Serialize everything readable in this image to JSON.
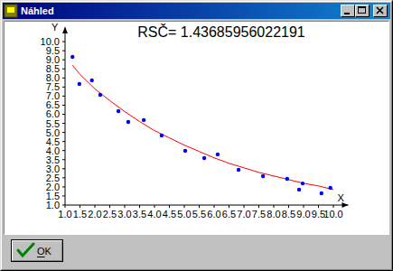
{
  "window": {
    "title": "Náhled",
    "button": "OK"
  },
  "chart_data": {
    "type": "scatter",
    "title": "RSČ= 1.43685956022191",
    "x_label": "X",
    "y_label": "Y",
    "xlim": [
      1,
      10.5
    ],
    "ylim": [
      1,
      10.8
    ],
    "xticks": [
      {
        "value": 1,
        "label": "1.0"
      },
      {
        "value": 1.5,
        "label": "1.5"
      },
      {
        "value": 2,
        "label": "2.0"
      },
      {
        "value": 2.5,
        "label": "2.5"
      },
      {
        "value": 3,
        "label": "3.0"
      },
      {
        "value": 3.5,
        "label": "3.5"
      },
      {
        "value": 4,
        "label": "4.0"
      },
      {
        "value": 4.5,
        "label": "4.5"
      },
      {
        "value": 5,
        "label": "5.0"
      },
      {
        "value": 5.5,
        "label": "5.5"
      },
      {
        "value": 6,
        "label": "6.0"
      },
      {
        "value": 6.5,
        "label": "6.5"
      },
      {
        "value": 7,
        "label": "7.0"
      },
      {
        "value": 7.5,
        "label": "7.5"
      },
      {
        "value": 8,
        "label": "8.0"
      },
      {
        "value": 8.5,
        "label": "8.5"
      },
      {
        "value": 9,
        "label": "9.0"
      },
      {
        "value": 9.5,
        "label": "9.5"
      },
      {
        "value": 10,
        "label": "10.0"
      }
    ],
    "yticks": [
      {
        "value": 1,
        "label": "1.0"
      },
      {
        "value": 1.5,
        "label": "1.5"
      },
      {
        "value": 2,
        "label": "2.0"
      },
      {
        "value": 2.5,
        "label": "2.5"
      },
      {
        "value": 3,
        "label": "3.0"
      },
      {
        "value": 3.5,
        "label": "3.5"
      },
      {
        "value": 4,
        "label": "4.0"
      },
      {
        "value": 4.5,
        "label": "4.5"
      },
      {
        "value": 5,
        "label": "5.0"
      },
      {
        "value": 5.5,
        "label": "5.5"
      },
      {
        "value": 6,
        "label": "6.0"
      },
      {
        "value": 6.5,
        "label": "6.5"
      },
      {
        "value": 7,
        "label": "7.0"
      },
      {
        "value": 7.5,
        "label": "7.5"
      },
      {
        "value": 8,
        "label": "8.0"
      },
      {
        "value": 8.5,
        "label": "8.5"
      },
      {
        "value": 9,
        "label": "9.0"
      },
      {
        "value": 9.5,
        "label": "9.5"
      },
      {
        "value": 10,
        "label": "10.0"
      }
    ],
    "grid": false,
    "series": [
      {
        "type": "scatter",
        "color": "#0000ff",
        "marker": "circle",
        "x": [
          1.25,
          1.48,
          1.9,
          2.18,
          2.79,
          3.12,
          3.64,
          4.24,
          5.03,
          5.67,
          6.12,
          6.82,
          7.64,
          8.45,
          8.85,
          8.97,
          9.6,
          9.9
        ],
        "values": [
          9.16,
          7.67,
          7.87,
          7.07,
          6.17,
          5.58,
          5.68,
          4.83,
          3.99,
          3.59,
          3.79,
          2.94,
          2.59,
          2.44,
          1.85,
          2.19,
          1.65,
          1.95
        ]
      },
      {
        "type": "line",
        "color": "#ff0000",
        "line_style": "solid",
        "x": [
          1.25,
          1.5,
          2,
          2.5,
          3,
          3.5,
          4,
          4.5,
          5,
          5.5,
          6,
          6.5,
          7,
          7.5,
          8,
          8.5,
          9,
          9.5,
          10
        ],
        "values": [
          8.7,
          8.2,
          7.4,
          6.75,
          6.15,
          5.6,
          5.1,
          4.7,
          4.3,
          3.95,
          3.6,
          3.3,
          3.05,
          2.8,
          2.6,
          2.4,
          2.2,
          2.05,
          1.85
        ]
      }
    ]
  }
}
